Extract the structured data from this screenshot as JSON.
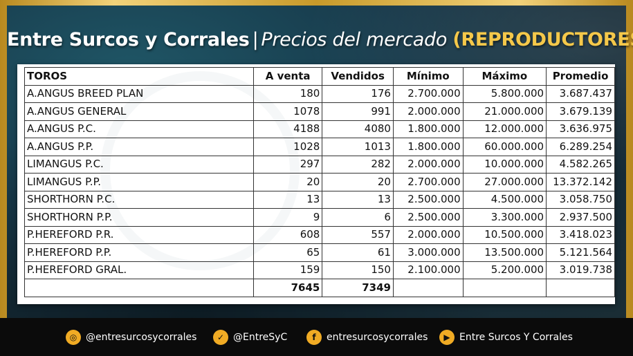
{
  "header": {
    "brand": "Entre Surcos y Corrales",
    "separator": "|",
    "subtitle": "Precios del mercado",
    "tag": "(REPRODUCTORES)"
  },
  "table": {
    "headers": [
      "TOROS",
      "A venta",
      "Vendidos",
      "Mínimo",
      "Máximo",
      "Promedio"
    ],
    "rows": [
      [
        "A.ANGUS BREED PLAN",
        "180",
        "176",
        "2.700.000",
        "5.800.000",
        "3.687.437"
      ],
      [
        "A.ANGUS GENERAL",
        "1078",
        "991",
        "2.000.000",
        "21.000.000",
        "3.679.139"
      ],
      [
        "A.ANGUS P.C.",
        "4188",
        "4080",
        "1.800.000",
        "12.000.000",
        "3.636.975"
      ],
      [
        "A.ANGUS P.P.",
        "1028",
        "1013",
        "1.800.000",
        "60.000.000",
        "6.289.254"
      ],
      [
        "LIMANGUS P.C.",
        "297",
        "282",
        "2.000.000",
        "10.000.000",
        "4.582.265"
      ],
      [
        "LIMANGUS P.P.",
        "20",
        "20",
        "2.700.000",
        "27.000.000",
        "13.372.142"
      ],
      [
        "SHORTHORN P.C.",
        "13",
        "13",
        "2.500.000",
        "4.500.000",
        "3.058.750"
      ],
      [
        "SHORTHORN P.P.",
        "9",
        "6",
        "2.500.000",
        "3.300.000",
        "2.937.500"
      ],
      [
        "P.HEREFORD P.R.",
        "608",
        "557",
        "2.000.000",
        "10.500.000",
        "3.418.023"
      ],
      [
        "P.HEREFORD P.P.",
        "65",
        "61",
        "3.000.000",
        "13.500.000",
        "5.121.564"
      ],
      [
        "P.HEREFORD GRAL.",
        "159",
        "150",
        "2.100.000",
        "5.200.000",
        "3.019.738"
      ]
    ],
    "totals": [
      "",
      "7645",
      "7349",
      "",
      "",
      ""
    ]
  },
  "footer": {
    "social": [
      {
        "icon": "instagram-icon",
        "glyph": "◎",
        "label": "@entresurcosycorrales"
      },
      {
        "icon": "twitter-icon",
        "glyph": "✓",
        "label": "@EntreSyC"
      },
      {
        "icon": "facebook-icon",
        "glyph": "f",
        "label": "entresurcosycorrales"
      },
      {
        "icon": "youtube-icon",
        "glyph": "▶",
        "label": "Entre Surcos Y Corrales"
      }
    ]
  },
  "colors": {
    "frame_gold": "#c89a2a",
    "panel_teal": "#17394a",
    "tag_yellow": "#f5c84a",
    "icon_orange": "#f0ab24"
  }
}
